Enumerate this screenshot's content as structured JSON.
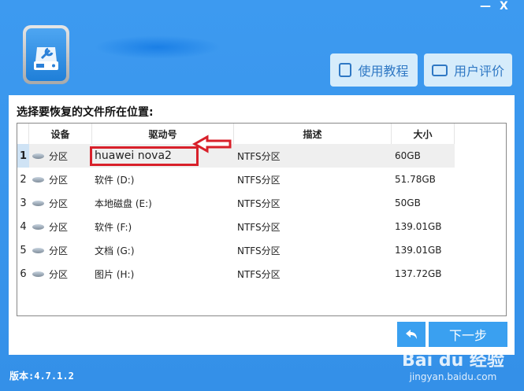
{
  "window": {
    "minimize": "—",
    "close": "X"
  },
  "header": {
    "tutorial_label": "使用教程",
    "review_label": "用户评价"
  },
  "panel": {
    "title": "选择要恢复的文件所在位置:"
  },
  "table": {
    "columns": [
      "设备",
      "驱动号",
      "描述",
      "大小"
    ],
    "rows": [
      {
        "num": "1",
        "device": "分区",
        "drive": "huawei nova2",
        "desc": "NTFS分区",
        "size": "60GB",
        "selected": true
      },
      {
        "num": "2",
        "device": "分区",
        "drive": "软件 (D:)",
        "desc": "NTFS分区",
        "size": "51.78GB"
      },
      {
        "num": "3",
        "device": "分区",
        "drive": "本地磁盘 (E:)",
        "desc": "NTFS分区",
        "size": "50GB"
      },
      {
        "num": "4",
        "device": "分区",
        "drive": "软件 (F:)",
        "desc": "NTFS分区",
        "size": "139.01GB"
      },
      {
        "num": "5",
        "device": "分区",
        "drive": "文档 (G:)",
        "desc": "NTFS分区",
        "size": "139.01GB"
      },
      {
        "num": "6",
        "device": "分区",
        "drive": "图片 (H:)",
        "desc": "NTFS分区",
        "size": "137.72GB"
      }
    ]
  },
  "footer": {
    "back_icon": "back-arrow-icon",
    "next_label": "下一步",
    "version": "版本:4.7.1.2"
  },
  "watermark": {
    "brand": "Bai du 经验",
    "url": "jingyan.baidu.com"
  },
  "colors": {
    "background": "#3592ea",
    "button": "#3aa0f0",
    "highlight": "#d8202a"
  }
}
